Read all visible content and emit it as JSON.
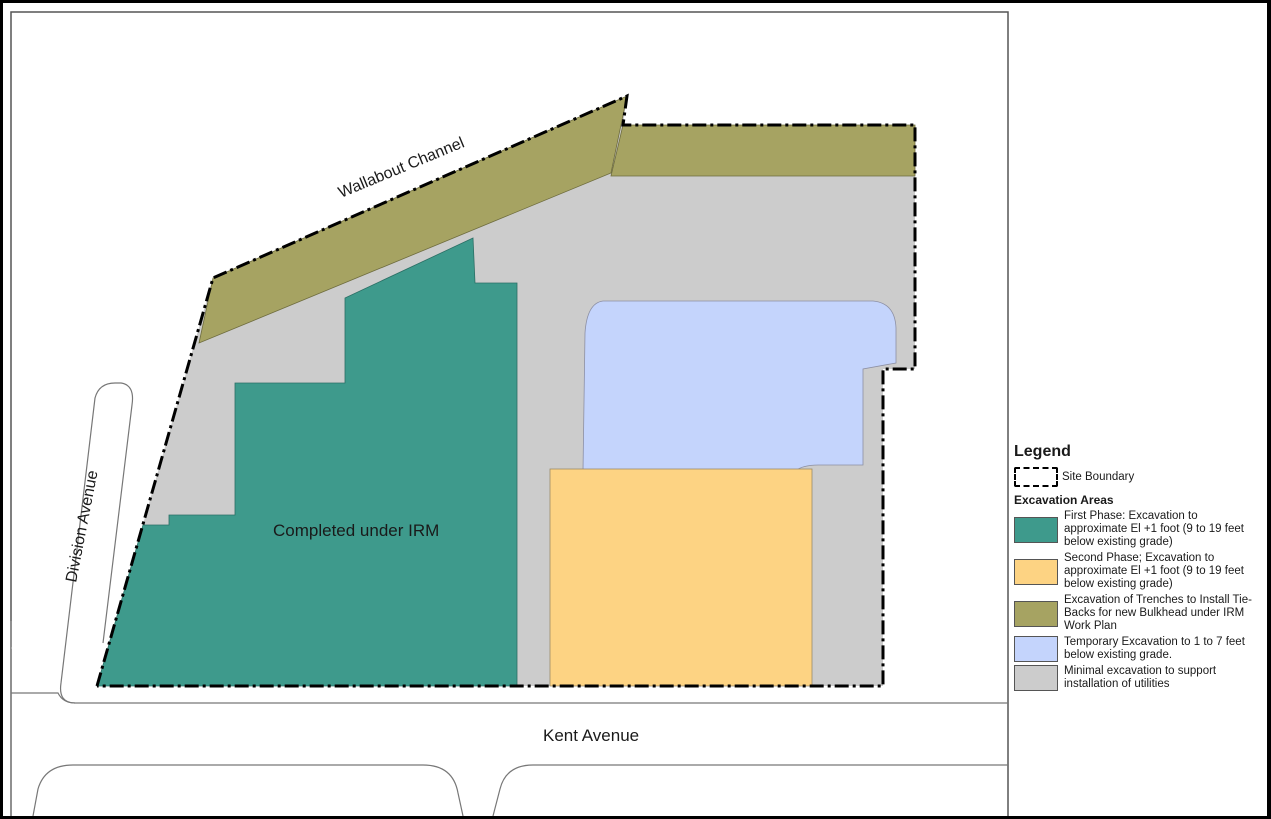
{
  "map": {
    "labels": {
      "channel": "Wallabout Channel",
      "division": "Division Avenue",
      "kent": "Kent Avenue",
      "irm": "Completed under IRM"
    },
    "colors": {
      "first_phase": "#3e9a8c",
      "second_phase": "#fdd383",
      "trenches": "#a6a362",
      "temporary": "#c4d4fc",
      "minimal": "#cccccc"
    }
  },
  "legend": {
    "title": "Legend",
    "site_boundary": "Site Boundary",
    "section": "Excavation Areas",
    "items": [
      {
        "text": "First Phase: Excavation to approximate El +1 foot (9 to 19 feet below existing grade)",
        "color": "#3e9a8c"
      },
      {
        "text": "Second Phase; Excavation to approximate El +1 foot (9 to 19 feet below existing grade)",
        "color": "#fdd383"
      },
      {
        "text": "Excavation of Trenches to Install Tie-Backs for new Bulkhead under IRM Work Plan",
        "color": "#a6a362"
      },
      {
        "text": "Temporary Excavation to 1 to 7 feet below existing grade.",
        "color": "#c4d4fc"
      },
      {
        "text": "Minimal excavation to support installation of utilities",
        "color": "#cccccc"
      }
    ]
  }
}
